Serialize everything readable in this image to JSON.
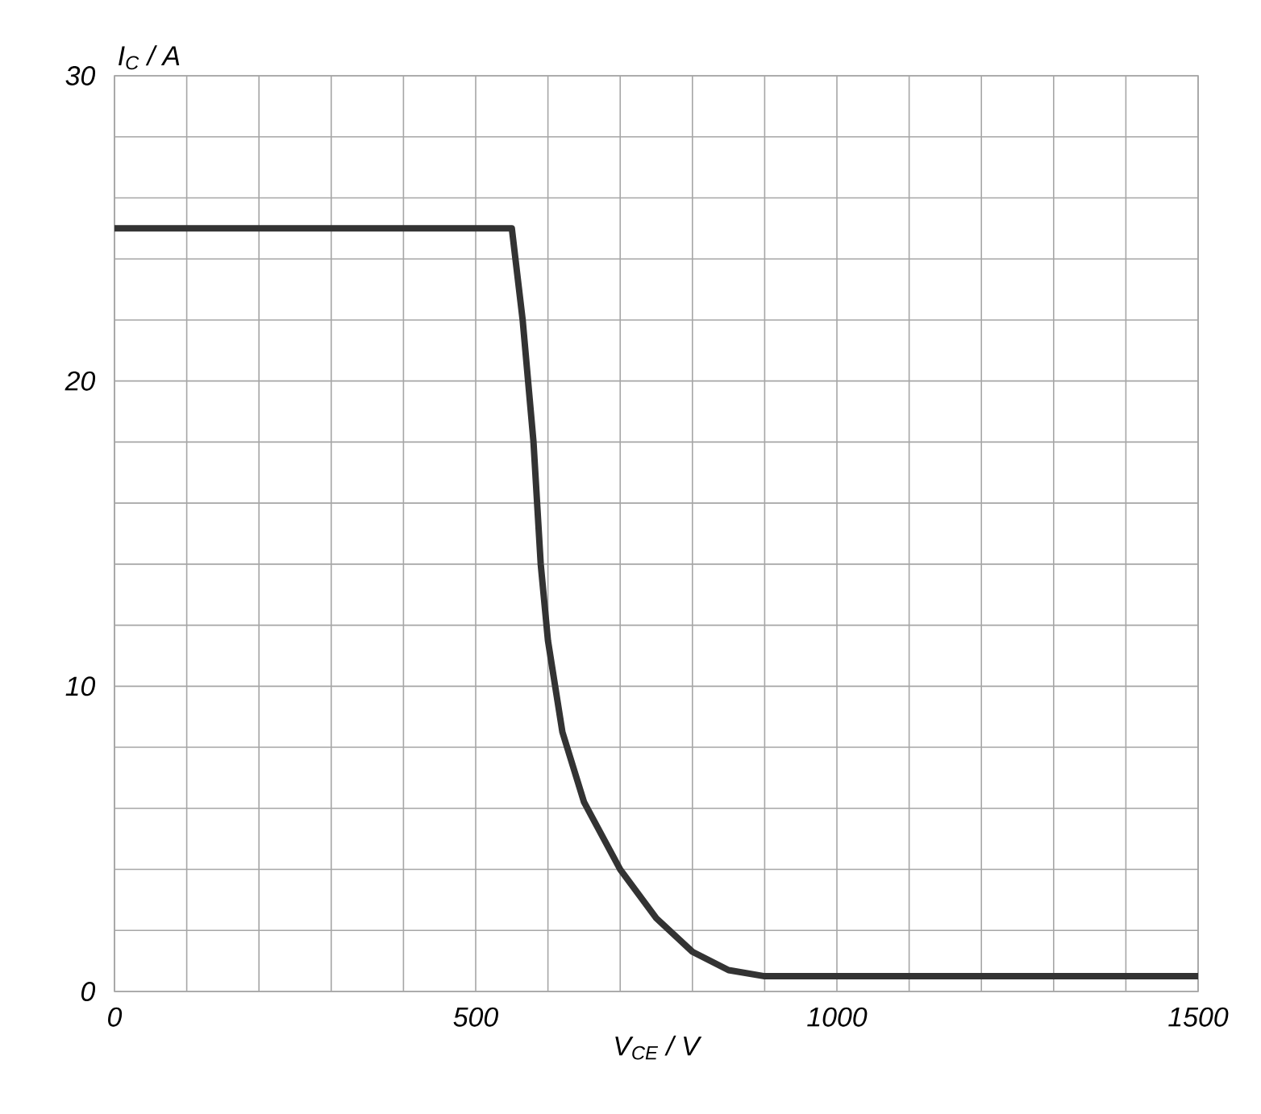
{
  "chart_data": {
    "type": "line",
    "xlabel": "V$_{CE}$ / V",
    "ylabel": "I$_{C}$ / A",
    "x": [
      0,
      550,
      565,
      580,
      590,
      600,
      620,
      650,
      700,
      750,
      800,
      850,
      900,
      1500
    ],
    "series": [
      {
        "color": "#333333",
        "values": [
          25,
          25,
          22,
          18,
          14,
          11.5,
          8.5,
          6.2,
          4,
          2.4,
          1.3,
          0.7,
          0.5,
          0.5
        ]
      }
    ],
    "xlim": [
      0,
      1500
    ],
    "ylim": [
      0,
      30
    ],
    "xticks": [
      0,
      500,
      1000,
      1500
    ],
    "yticks": [
      0,
      10,
      20,
      30
    ],
    "grid": true,
    "marker": "none",
    "line_style": "solid"
  }
}
